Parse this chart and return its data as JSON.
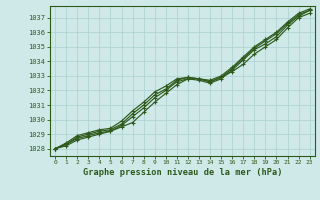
{
  "bg_color": "#cfe9e9",
  "grid_color": "#b0d4d4",
  "line_color": "#2d5a1b",
  "marker_color": "#2d5a1b",
  "title": "Graphe pression niveau de la mer (hPa)",
  "title_color": "#2d5a1b",
  "xlim": [
    -0.5,
    23.5
  ],
  "ylim": [
    1027.5,
    1037.8
  ],
  "yticks": [
    1028,
    1029,
    1030,
    1031,
    1032,
    1033,
    1034,
    1035,
    1036,
    1037
  ],
  "xticks": [
    0,
    1,
    2,
    3,
    4,
    5,
    6,
    7,
    8,
    9,
    10,
    11,
    12,
    13,
    14,
    15,
    16,
    17,
    18,
    19,
    20,
    21,
    22,
    23
  ],
  "series": [
    [
      1028.0,
      1028.2,
      1028.6,
      1028.8,
      1029.0,
      1029.2,
      1029.5,
      1029.8,
      1030.5,
      1031.2,
      1031.8,
      1032.4,
      1032.8,
      1032.8,
      1032.6,
      1032.9,
      1033.3,
      1033.8,
      1034.5,
      1035.0,
      1035.5,
      1036.3,
      1037.0,
      1037.3
    ],
    [
      1028.0,
      1028.3,
      1028.7,
      1028.9,
      1029.1,
      1029.2,
      1029.6,
      1030.2,
      1030.8,
      1031.5,
      1032.0,
      1032.6,
      1032.8,
      1032.7,
      1032.5,
      1032.8,
      1033.4,
      1034.1,
      1034.8,
      1035.2,
      1035.7,
      1036.5,
      1037.1,
      1037.5
    ],
    [
      1028.0,
      1028.3,
      1028.8,
      1029.0,
      1029.2,
      1029.3,
      1029.7,
      1030.4,
      1031.0,
      1031.7,
      1032.1,
      1032.7,
      1032.9,
      1032.8,
      1032.6,
      1032.9,
      1033.5,
      1034.2,
      1034.9,
      1035.4,
      1035.9,
      1036.6,
      1037.2,
      1037.5
    ],
    [
      1028.0,
      1028.4,
      1028.9,
      1029.1,
      1029.3,
      1029.4,
      1029.9,
      1030.6,
      1031.2,
      1031.9,
      1032.3,
      1032.8,
      1032.9,
      1032.8,
      1032.7,
      1033.0,
      1033.6,
      1034.3,
      1035.0,
      1035.5,
      1036.0,
      1036.7,
      1037.3,
      1037.6
    ]
  ]
}
